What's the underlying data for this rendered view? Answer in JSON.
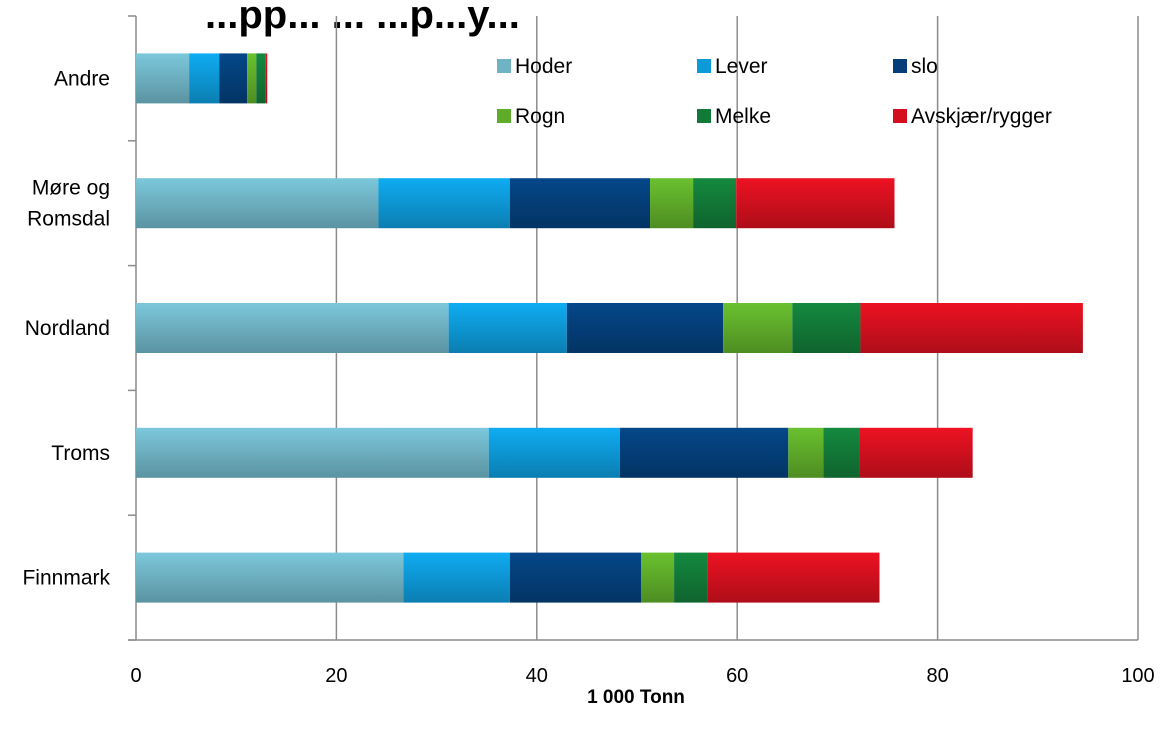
{
  "chart_data": {
    "type": "bar",
    "orientation": "horizontal",
    "stacked": true,
    "title": "...pp...  ...  ...p...y...",
    "xlabel": "1 000 Tonn",
    "ylabel": "",
    "xlim": [
      0,
      100
    ],
    "xticks": [
      0,
      20,
      40,
      60,
      80,
      100
    ],
    "grid": true,
    "legend_position": "top-right",
    "categories": [
      "Andre",
      "Møre og Romsdal",
      "Nordland",
      "Troms",
      "Finnmark"
    ],
    "category_lines": {
      "Møre og Romsdal": [
        "Møre og",
        "Romsdal"
      ]
    },
    "series": [
      {
        "name": "Hoder",
        "color": "#6fb3c4",
        "values": [
          5.3,
          24.2,
          31.2,
          35.2,
          26.7
        ]
      },
      {
        "name": "Lever",
        "color": "#0d9ad8",
        "values": [
          3.0,
          13.1,
          11.8,
          13.1,
          10.6
        ]
      },
      {
        "name": "slo",
        "color": "#043f7a",
        "values": [
          2.8,
          14.0,
          15.6,
          16.8,
          13.1
        ]
      },
      {
        "name": "Rogn",
        "color": "#5fac2a",
        "values": [
          0.9,
          4.3,
          6.9,
          3.5,
          3.3
        ]
      },
      {
        "name": "Melke",
        "color": "#127a38",
        "values": [
          0.9,
          4.3,
          6.8,
          3.6,
          3.3
        ]
      },
      {
        "name": "Avskjær/rygger",
        "color": "#d4101e",
        "values": [
          0.2,
          15.8,
          22.2,
          11.3,
          17.2
        ]
      }
    ]
  }
}
